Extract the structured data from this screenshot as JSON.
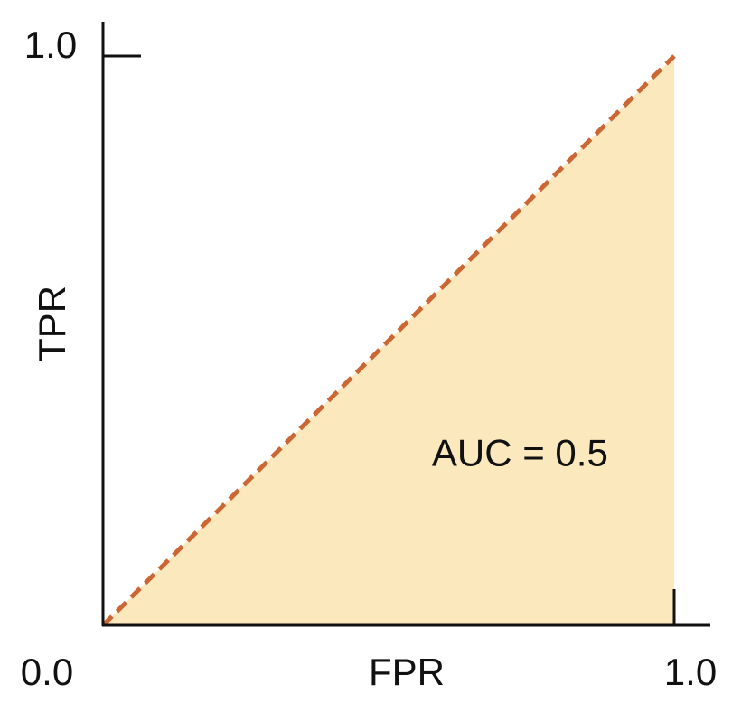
{
  "chart_data": {
    "type": "area",
    "xlabel": "FPR",
    "ylabel": "TPR",
    "xlim": [
      0.0,
      1.0
    ],
    "ylim": [
      0.0,
      1.0
    ],
    "tick_labels": {
      "x_min": "0.0",
      "x_max": "1.0",
      "y_max": "1.0"
    },
    "series": [
      {
        "x": [
          0.0,
          1.0
        ],
        "y": [
          0.0,
          1.0
        ],
        "line_style": "dashed",
        "line_color": "#cc6633",
        "fill_color": "#fbe8bd"
      }
    ],
    "annotations": [
      {
        "text": "AUC = 0.5",
        "x": 0.73,
        "y": 0.28
      }
    ],
    "grid": false,
    "legend": "none"
  }
}
